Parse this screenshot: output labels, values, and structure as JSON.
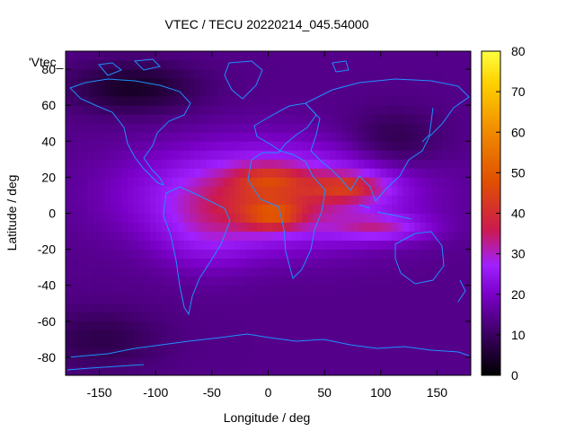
{
  "chart_data": {
    "type": "heatmap",
    "title": "VTEC / TECU 20220214_045.54000",
    "xlabel": "Longitude / deg",
    "ylabel": "Latitude / deg",
    "series_label": "'Vtec_",
    "xlim": [
      -180,
      180
    ],
    "ylim": [
      -90,
      90
    ],
    "x_ticks": [
      -150,
      -100,
      -50,
      0,
      50,
      100,
      150
    ],
    "y_ticks": [
      -80,
      -60,
      -40,
      -20,
      0,
      20,
      40,
      60,
      80
    ],
    "colorbar": {
      "range": [
        0,
        80
      ],
      "ticks": [
        0,
        10,
        20,
        30,
        40,
        50,
        60,
        70,
        80
      ],
      "palette": [
        "#000000",
        "#3a0060",
        "#7a00c8",
        "#a020ff",
        "#cc1a4e",
        "#e05000",
        "#f08a00",
        "#ffd000",
        "#ffff40"
      ]
    },
    "value_field": {
      "background": 14,
      "components": [
        {
          "lon": 0,
          "lat": 10,
          "sig_lon": 75,
          "sig_lat": 18,
          "amp": 28
        },
        {
          "lon": 5,
          "lat": -2,
          "sig_lon": 20,
          "sig_lat": 6,
          "amp": 14
        },
        {
          "lon": 0,
          "lat": 20,
          "sig_lon": 22,
          "sig_lat": 6,
          "amp": 10
        },
        {
          "lon": 75,
          "lat": 15,
          "sig_lon": 25,
          "sig_lat": 6,
          "amp": 16
        },
        {
          "lon": 100,
          "lat": -8,
          "sig_lon": 30,
          "sig_lat": 5,
          "amp": 15
        },
        {
          "lon": -55,
          "lat": -12,
          "sig_lon": 30,
          "sig_lat": 14,
          "amp": 8
        },
        {
          "lon": -120,
          "lat": 70,
          "sig_lon": 40,
          "sig_lat": 10,
          "amp": -10
        },
        {
          "lon": 110,
          "lat": 40,
          "sig_lon": 30,
          "sig_lat": 12,
          "amp": -7
        },
        {
          "lon": -150,
          "lat": -70,
          "sig_lon": 40,
          "sig_lat": 12,
          "amp": -6
        }
      ]
    }
  }
}
